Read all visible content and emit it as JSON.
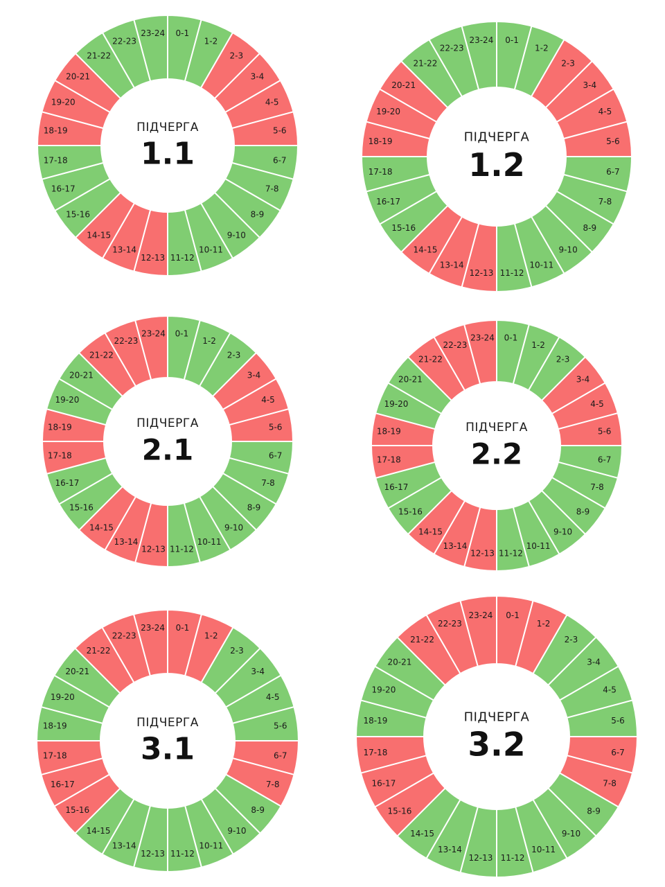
{
  "colors": {
    "on": "#80cd72",
    "off": "#f86f6f",
    "divider": "#ffffff",
    "center": "#ffffff"
  },
  "chart_data": [
    {
      "type": "pie",
      "title": "1.1",
      "caption": "ПІДЧЕРГА",
      "hours": [
        "0-1",
        "1-2",
        "2-3",
        "3-4",
        "4-5",
        "5-6",
        "6-7",
        "7-8",
        "8-9",
        "9-10",
        "10-11",
        "11-12",
        "12-13",
        "13-14",
        "14-15",
        "15-16",
        "16-17",
        "17-18",
        "18-19",
        "19-20",
        "20-21",
        "21-22",
        "22-23",
        "23-24"
      ],
      "status": [
        "on",
        "on",
        "off",
        "off",
        "off",
        "off",
        "on",
        "on",
        "on",
        "on",
        "on",
        "on",
        "off",
        "off",
        "off",
        "on",
        "on",
        "on",
        "off",
        "off",
        "off",
        "on",
        "on",
        "on"
      ]
    },
    {
      "type": "pie",
      "title": "1.2",
      "caption": "ПІДЧЕРГА",
      "hours": [
        "0-1",
        "1-2",
        "2-3",
        "3-4",
        "4-5",
        "5-6",
        "6-7",
        "7-8",
        "8-9",
        "9-10",
        "10-11",
        "11-12",
        "12-13",
        "13-14",
        "14-15",
        "15-16",
        "16-17",
        "17-18",
        "18-19",
        "19-20",
        "20-21",
        "21-22",
        "22-23",
        "23-24"
      ],
      "status": [
        "on",
        "on",
        "off",
        "off",
        "off",
        "off",
        "on",
        "on",
        "on",
        "on",
        "on",
        "on",
        "off",
        "off",
        "off",
        "on",
        "on",
        "on",
        "off",
        "off",
        "off",
        "on",
        "on",
        "on"
      ]
    },
    {
      "type": "pie",
      "title": "2.1",
      "caption": "ПІДЧЕРГА",
      "hours": [
        "0-1",
        "1-2",
        "2-3",
        "3-4",
        "4-5",
        "5-6",
        "6-7",
        "7-8",
        "8-9",
        "9-10",
        "10-11",
        "11-12",
        "12-13",
        "13-14",
        "14-15",
        "15-16",
        "16-17",
        "17-18",
        "18-19",
        "19-20",
        "20-21",
        "21-22",
        "22-23",
        "23-24"
      ],
      "status": [
        "on",
        "on",
        "on",
        "off",
        "off",
        "off",
        "on",
        "on",
        "on",
        "on",
        "on",
        "on",
        "off",
        "off",
        "off",
        "on",
        "on",
        "off",
        "off",
        "on",
        "on",
        "off",
        "off",
        "off"
      ]
    },
    {
      "type": "pie",
      "title": "2.2",
      "caption": "ПІДЧЕРГА",
      "hours": [
        "0-1",
        "1-2",
        "2-3",
        "3-4",
        "4-5",
        "5-6",
        "6-7",
        "7-8",
        "8-9",
        "9-10",
        "10-11",
        "11-12",
        "12-13",
        "13-14",
        "14-15",
        "15-16",
        "16-17",
        "17-18",
        "18-19",
        "19-20",
        "20-21",
        "21-22",
        "22-23",
        "23-24"
      ],
      "status": [
        "on",
        "on",
        "on",
        "off",
        "off",
        "off",
        "on",
        "on",
        "on",
        "on",
        "on",
        "on",
        "off",
        "off",
        "off",
        "on",
        "on",
        "off",
        "off",
        "on",
        "on",
        "off",
        "off",
        "off"
      ]
    },
    {
      "type": "pie",
      "title": "3.1",
      "caption": "ПІДЧЕРГА",
      "hours": [
        "0-1",
        "1-2",
        "2-3",
        "3-4",
        "4-5",
        "5-6",
        "6-7",
        "7-8",
        "8-9",
        "9-10",
        "10-11",
        "11-12",
        "12-13",
        "13-14",
        "14-15",
        "15-16",
        "16-17",
        "17-18",
        "18-19",
        "19-20",
        "20-21",
        "21-22",
        "22-23",
        "23-24"
      ],
      "status": [
        "off",
        "off",
        "on",
        "on",
        "on",
        "on",
        "off",
        "off",
        "on",
        "on",
        "on",
        "on",
        "on",
        "on",
        "on",
        "off",
        "off",
        "off",
        "on",
        "on",
        "on",
        "off",
        "off",
        "off"
      ]
    },
    {
      "type": "pie",
      "title": "3.2",
      "caption": "ПІДЧЕРГА",
      "hours": [
        "0-1",
        "1-2",
        "2-3",
        "3-4",
        "4-5",
        "5-6",
        "6-7",
        "7-8",
        "8-9",
        "9-10",
        "10-11",
        "11-12",
        "12-13",
        "13-14",
        "14-15",
        "15-16",
        "16-17",
        "17-18",
        "18-19",
        "19-20",
        "20-21",
        "21-22",
        "22-23",
        "23-24"
      ],
      "status": [
        "off",
        "off",
        "on",
        "on",
        "on",
        "on",
        "off",
        "off",
        "on",
        "on",
        "on",
        "on",
        "on",
        "on",
        "on",
        "off",
        "off",
        "off",
        "on",
        "on",
        "on",
        "off",
        "off",
        "off"
      ]
    }
  ]
}
